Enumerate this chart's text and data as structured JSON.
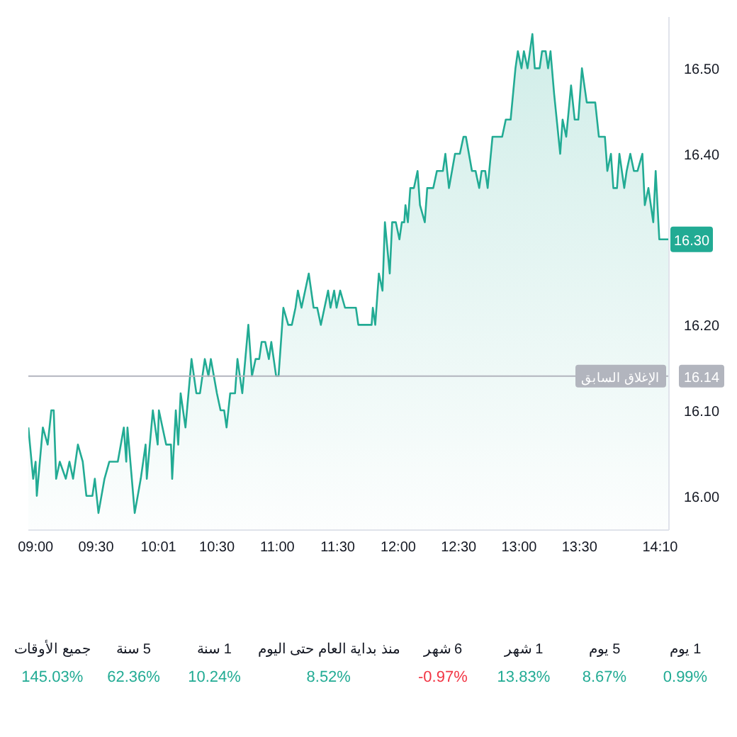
{
  "chart_data": [
    {
      "type": "area",
      "color": "#22ab94",
      "x": [
        8.94,
        8.98,
        9.0,
        9.01,
        9.06,
        9.1,
        9.13,
        9.15,
        9.17,
        9.2,
        9.25,
        9.28,
        9.31,
        9.35,
        9.39,
        9.42,
        9.47,
        9.49,
        9.52,
        9.57,
        9.61,
        9.68,
        9.73,
        9.75,
        9.76,
        9.82,
        9.87,
        9.91,
        9.92,
        9.97,
        10.01,
        10.02,
        10.05,
        10.08,
        10.12,
        10.13,
        10.16,
        10.18,
        10.2,
        10.24,
        10.29,
        10.33,
        10.36,
        10.4,
        10.43,
        10.45,
        10.5,
        10.53,
        10.56,
        10.58,
        10.61,
        10.65,
        10.67,
        10.71,
        10.76,
        10.79,
        10.82,
        10.85,
        10.87,
        10.9,
        10.93,
        10.95,
        10.99,
        11.01,
        11.05,
        11.09,
        11.12,
        11.15,
        11.17,
        11.2,
        11.26,
        11.3,
        11.33,
        11.36,
        11.42,
        11.44,
        11.47,
        11.49,
        11.52,
        11.56,
        11.65,
        11.67,
        11.78,
        11.79,
        11.81,
        11.84,
        11.87,
        11.89,
        11.93,
        11.95,
        11.98,
        12.01,
        12.03,
        12.05,
        12.06,
        12.08,
        12.1,
        12.13,
        12.16,
        12.18,
        12.22,
        12.24,
        12.29,
        12.32,
        12.37,
        12.39,
        12.42,
        12.47,
        12.51,
        12.54,
        12.56,
        12.61,
        12.64,
        12.67,
        12.69,
        12.72,
        12.74,
        12.78,
        12.86,
        12.89,
        12.93,
        12.97,
        12.99,
        13.02,
        13.04,
        13.07,
        13.11,
        13.13,
        13.17,
        13.19,
        13.22,
        13.24,
        13.26,
        13.29,
        13.34,
        13.36,
        13.39,
        13.43,
        13.46,
        13.49,
        13.52,
        13.56,
        13.63,
        13.66,
        13.71,
        13.73,
        13.76,
        13.78,
        13.81,
        13.83,
        13.87,
        13.89,
        13.92,
        13.95,
        13.98,
        14.02,
        14.04,
        14.07,
        14.09,
        14.11,
        14.13,
        14.16,
        14.24
      ],
      "values": [
        16.08,
        16.02,
        16.04,
        16.0,
        16.08,
        16.06,
        16.1,
        16.1,
        16.02,
        16.04,
        16.02,
        16.04,
        16.02,
        16.06,
        16.04,
        16.0,
        16.0,
        16.02,
        15.98,
        16.02,
        16.04,
        16.04,
        16.08,
        16.04,
        16.08,
        15.98,
        16.02,
        16.06,
        16.02,
        16.1,
        16.06,
        16.1,
        16.08,
        16.06,
        16.06,
        16.02,
        16.1,
        16.06,
        16.12,
        16.08,
        16.16,
        16.12,
        16.12,
        16.16,
        16.14,
        16.16,
        16.12,
        16.1,
        16.1,
        16.08,
        16.12,
        16.12,
        16.16,
        16.12,
        16.2,
        16.14,
        16.16,
        16.16,
        16.18,
        16.18,
        16.16,
        16.18,
        16.14,
        16.14,
        16.22,
        16.2,
        16.2,
        16.22,
        16.24,
        16.22,
        16.26,
        16.22,
        16.22,
        16.2,
        16.24,
        16.22,
        16.24,
        16.22,
        16.24,
        16.22,
        16.22,
        16.2,
        16.2,
        16.22,
        16.2,
        16.26,
        16.24,
        16.32,
        16.26,
        16.32,
        16.32,
        16.3,
        16.32,
        16.32,
        16.34,
        16.32,
        16.36,
        16.36,
        16.38,
        16.34,
        16.32,
        16.36,
        16.36,
        16.38,
        16.38,
        16.4,
        16.36,
        16.4,
        16.4,
        16.42,
        16.42,
        16.38,
        16.38,
        16.36,
        16.38,
        16.38,
        16.36,
        16.42,
        16.42,
        16.44,
        16.44,
        16.5,
        16.52,
        16.5,
        16.52,
        16.5,
        16.54,
        16.5,
        16.5,
        16.52,
        16.52,
        16.5,
        16.52,
        16.47,
        16.4,
        16.44,
        16.42,
        16.48,
        16.44,
        16.44,
        16.5,
        16.46,
        16.46,
        16.42,
        16.42,
        16.38,
        16.4,
        16.36,
        16.36,
        16.4,
        16.36,
        16.38,
        16.4,
        16.38,
        16.38,
        16.4,
        16.34,
        16.36,
        16.34,
        16.32,
        16.38,
        16.3,
        16.3
      ],
      "xlim": [
        8.94,
        14.24
      ],
      "xticks": [
        {
          "value": 9,
          "label": "09:00"
        },
        {
          "value": 9.5,
          "label": "09:30"
        },
        {
          "value": 10.0167,
          "label": "10:01"
        },
        {
          "value": 10.5,
          "label": "10:30"
        },
        {
          "value": 11,
          "label": "11:00"
        },
        {
          "value": 11.5,
          "label": "11:30"
        },
        {
          "value": 12,
          "label": "12:00"
        },
        {
          "value": 12.5,
          "label": "12:30"
        },
        {
          "value": 13,
          "label": "13:00"
        },
        {
          "value": 13.5,
          "label": "13:30"
        },
        {
          "value": 14.1667,
          "label": "14:10"
        }
      ],
      "ylim": [
        15.96,
        16.56
      ],
      "yticks": [
        {
          "value": 16,
          "label": "16.00"
        },
        {
          "value": 16.1,
          "label": "16.10"
        },
        {
          "value": 16.14,
          "label": "16.14"
        },
        {
          "value": 16.2,
          "label": "16.20"
        },
        {
          "value": 16.4,
          "label": "16.40"
        },
        {
          "value": 16.5,
          "label": "16.50"
        }
      ],
      "ref_lines": [
        {
          "axis": "y",
          "value": 16.14,
          "label": "الإغلاق السابق",
          "color": "#b2b5be"
        }
      ],
      "annotations": [
        {
          "text": "16.30",
          "x": 14.24,
          "y": 16.3
        }
      ],
      "grid": false,
      "legend": false
    },
    {
      "type": "other",
      "categories": [
        "جميع الأوقات",
        "5 سنة",
        "1 سنة",
        "منذ بداية العام حتى اليوم",
        "6 شهر",
        "1 شهر",
        "5 يوم",
        "1 يوم"
      ],
      "values": [
        145.03,
        62.36,
        10.24,
        8.52,
        -0.97,
        13.83,
        8.67,
        0.99
      ],
      "value_labels": [
        "145.03%",
        "62.36%",
        "10.24%",
        "8.52%",
        "-0.97%",
        "13.83%",
        "8.67%",
        "0.99%"
      ],
      "colors": [
        "#22ab94",
        "#22ab94",
        "#22ab94",
        "#22ab94",
        "#f23645",
        "#22ab94",
        "#22ab94",
        "#22ab94"
      ]
    }
  ]
}
